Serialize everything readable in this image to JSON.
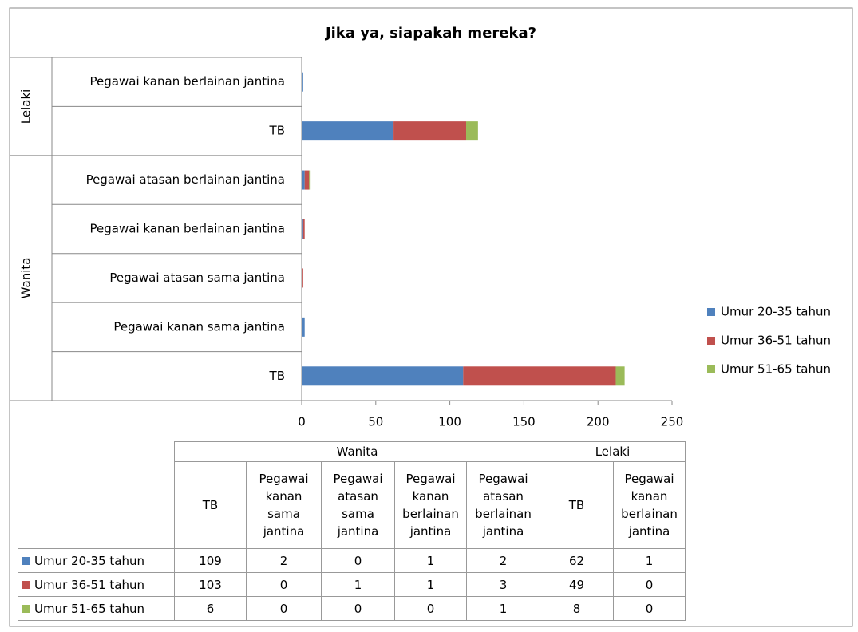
{
  "chart_data": {
    "type": "bar",
    "orientation": "horizontal",
    "stacked": true,
    "title": "Jika ya, siapakah mereka?",
    "groups": [
      {
        "name": "Wanita",
        "categories": [
          "TB",
          "Pegawai kanan sama jantina",
          "Pegawai atasan sama jantina",
          "Pegawai kanan berlainan jantina",
          "Pegawai atasan berlainan jantina"
        ]
      },
      {
        "name": "Lelaki",
        "categories": [
          "TB",
          "Pegawai kanan berlainan jantina"
        ]
      }
    ],
    "series": [
      {
        "name": "Umur 20-35 tahun",
        "color": "#4f81bd",
        "values": [
          109,
          2,
          0,
          1,
          2,
          62,
          1
        ]
      },
      {
        "name": "Umur 36-51 tahun",
        "color": "#c0504d",
        "values": [
          103,
          0,
          1,
          1,
          3,
          49,
          0
        ]
      },
      {
        "name": "Umur 51-65 tahun",
        "color": "#9bbb59",
        "values": [
          6,
          0,
          0,
          0,
          1,
          8,
          0
        ]
      }
    ],
    "xlim": [
      0,
      250
    ],
    "xticks": [
      0,
      50,
      100,
      150,
      200,
      250
    ],
    "legend": "right"
  }
}
